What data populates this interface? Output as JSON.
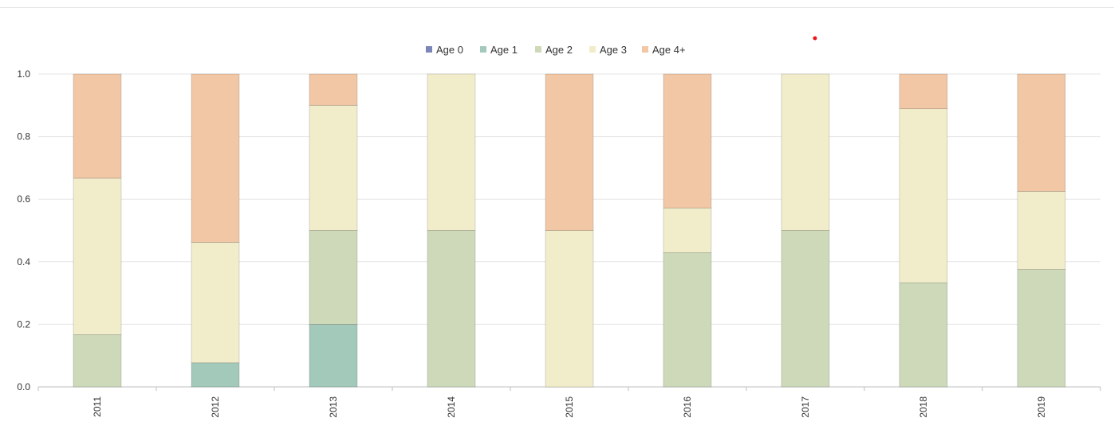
{
  "chart_data": {
    "type": "bar",
    "stacked": true,
    "normalized": true,
    "title": "",
    "xlabel": "",
    "ylabel": "",
    "categories": [
      "2011",
      "2012",
      "2013",
      "2014",
      "2015",
      "2016",
      "2017",
      "2018",
      "2019"
    ],
    "ylim": [
      0,
      1.0
    ],
    "yticks": [
      "0.0",
      "0.2",
      "0.4",
      "0.6",
      "0.8",
      "1.0"
    ],
    "grid": "horizontal",
    "legend_position": "top",
    "series": [
      {
        "name": "Age 0",
        "color": "#7a85b8",
        "values": [
          0,
          0,
          0,
          0,
          0,
          0,
          0,
          0,
          0
        ]
      },
      {
        "name": "Age 1",
        "color": "#a3c9bb",
        "values": [
          0,
          0.077,
          0.2,
          0,
          0,
          0,
          0,
          0,
          0
        ]
      },
      {
        "name": "Age 2",
        "color": "#cdd9b9",
        "values": [
          0.167,
          0,
          0.3,
          0.5,
          0,
          0.429,
          0.5,
          0.333,
          0.375
        ]
      },
      {
        "name": "Age 3",
        "color": "#f1edcb",
        "values": [
          0.5,
          0.385,
          0.4,
          0.5,
          0.5,
          0.143,
          0.5,
          0.556,
          0.25
        ]
      },
      {
        "name": "Age 4+",
        "color": "#f2c7a5",
        "values": [
          0.333,
          0.538,
          0.1,
          0,
          0.5,
          0.428,
          0,
          0.111,
          0.375
        ]
      }
    ]
  }
}
